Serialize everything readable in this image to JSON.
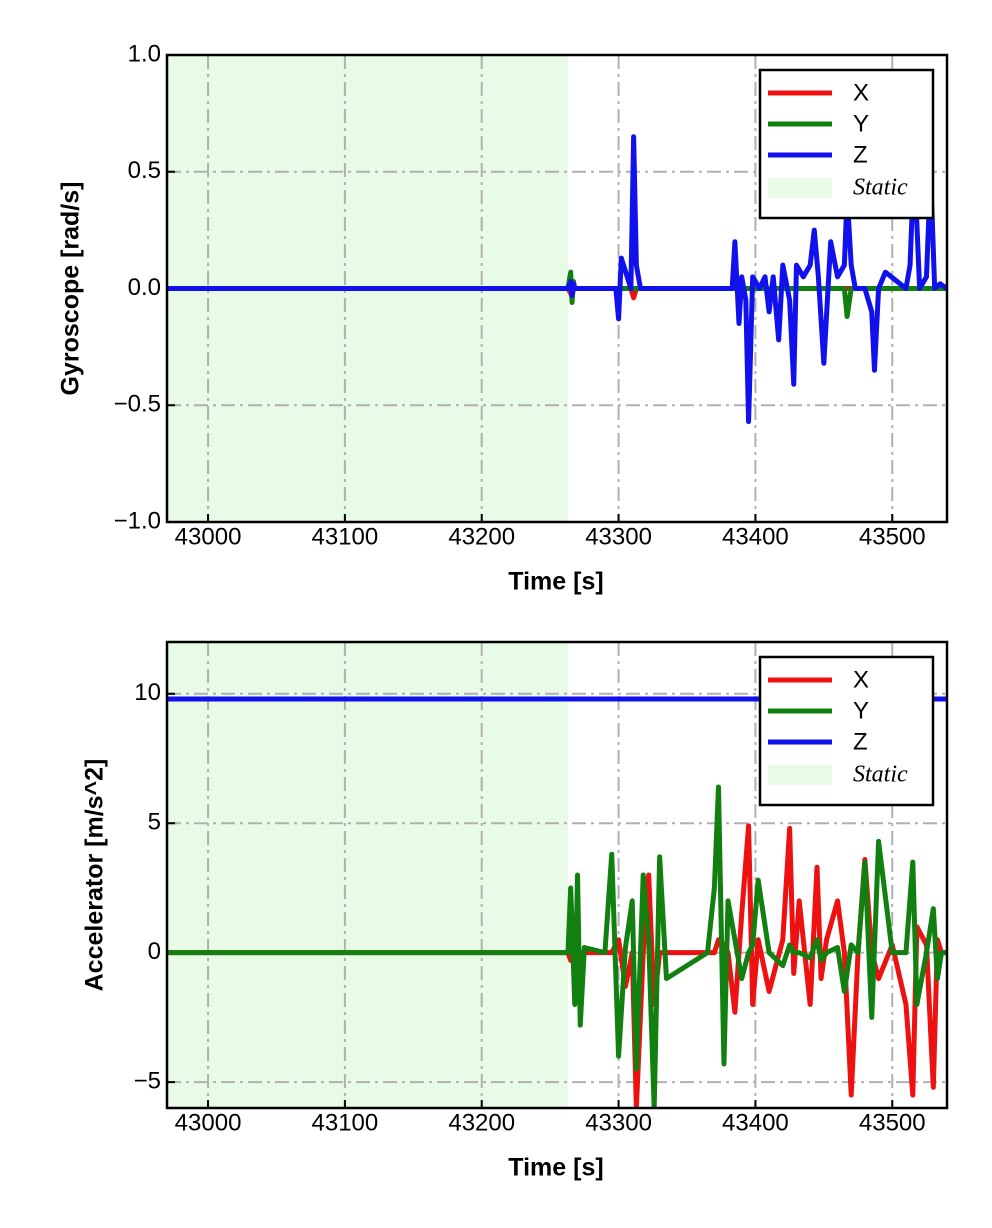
{
  "chart_data": [
    {
      "type": "line",
      "xlabel": "Time [s]",
      "ylabel": "Gyroscope [rad/s]",
      "x": [
        42970,
        43263,
        43265,
        43266,
        43267,
        43268,
        43270,
        43298,
        43300,
        43302,
        43309,
        43311,
        43313,
        43316,
        43383,
        43385,
        43388,
        43390,
        43393,
        43395,
        43398,
        43403,
        43407,
        43410,
        43413,
        43417,
        43420,
        43425,
        43428,
        43430,
        43435,
        43440,
        43443,
        43446,
        43450,
        43455,
        43460,
        43465,
        43467,
        43470,
        43473,
        43480,
        43485,
        43487,
        43490,
        43495,
        43510,
        43513,
        43516,
        43520,
        43525,
        43528,
        43531,
        43535,
        43540
      ],
      "series": [
        {
          "name": "X",
          "color": "#ee1111",
          "values": [
            0,
            0,
            -0.02,
            -0.04,
            0,
            0,
            0,
            0,
            0,
            0,
            0,
            -0.04,
            0,
            0,
            0,
            0,
            0,
            0,
            0,
            0,
            0,
            0,
            0,
            0,
            0,
            0,
            0,
            0,
            0,
            0,
            0,
            0,
            0,
            0,
            0,
            0,
            0,
            0,
            0,
            0,
            0,
            0,
            0,
            0,
            0,
            0,
            0,
            0,
            0,
            0,
            0,
            0,
            0,
            0,
            0
          ]
        },
        {
          "name": "Y",
          "color": "#118011",
          "values": [
            0,
            0,
            0.07,
            -0.06,
            0.03,
            0,
            0,
            0,
            0,
            0,
            0,
            0,
            0,
            0,
            0,
            0,
            0,
            0,
            0,
            0,
            0,
            0,
            0,
            0,
            0,
            0,
            0,
            0,
            0,
            0,
            0,
            0,
            0,
            0,
            0,
            0,
            0,
            0,
            -0.12,
            0,
            0,
            0,
            0,
            0,
            0,
            0,
            0,
            0,
            0,
            0,
            0,
            0,
            0,
            0,
            0
          ]
        },
        {
          "name": "Z",
          "color": "#1111ee",
          "values": [
            0,
            0,
            0.03,
            -0.03,
            0.02,
            0,
            0,
            0,
            -0.13,
            0.13,
            0,
            0.65,
            0.1,
            0,
            0,
            0.2,
            -0.15,
            0.05,
            -0.05,
            -0.57,
            0.05,
            0,
            0.05,
            -0.1,
            0.05,
            -0.22,
            0.1,
            -0.05,
            -0.41,
            0.1,
            0.05,
            0.1,
            0.25,
            0.05,
            -0.32,
            0.2,
            0.05,
            0.1,
            0.4,
            0.1,
            0,
            0,
            -0.1,
            -0.35,
            0,
            0.07,
            0,
            0.1,
            0.55,
            0,
            0.05,
            0.5,
            0,
            0.02,
            0
          ]
        }
      ],
      "spans": [
        {
          "name": "Static",
          "color": "#e8fbe6",
          "x": [
            42970,
            43263
          ]
        }
      ],
      "xlim": [
        42970,
        43540
      ],
      "xticks": [
        43000,
        43100,
        43200,
        43300,
        43400,
        43500
      ],
      "ylim": [
        -1,
        1
      ],
      "yticks": [
        {
          "value": -1,
          "label": "−1.0"
        },
        {
          "value": -0.5,
          "label": "−0.5"
        },
        {
          "value": 0,
          "label": "0.0"
        },
        0.5,
        {
          "value": 1,
          "label": "1.0"
        }
      ],
      "grid": true,
      "legend": "upper right"
    },
    {
      "type": "line",
      "xlabel": "Time [s]",
      "ylabel": "Accelerator [m/s^2]",
      "x": [
        42970,
        43263,
        43265,
        43268,
        43270,
        43272,
        43275,
        43290,
        43295,
        43300,
        43305,
        43310,
        43313,
        43318,
        43322,
        43326,
        43330,
        43335,
        43365,
        43370,
        43373,
        43377,
        43380,
        43385,
        43390,
        43395,
        43398,
        43402,
        43410,
        43420,
        43425,
        43428,
        43432,
        43440,
        43445,
        43448,
        43452,
        43460,
        43465,
        43470,
        43475,
        43480,
        43485,
        43490,
        43500,
        43510,
        43515,
        43518,
        43525,
        43530,
        43533,
        43536,
        43540
      ],
      "series": [
        {
          "name": "X",
          "color": "#ee1111",
          "values": [
            0,
            0,
            -0.3,
            0.2,
            0,
            0,
            0,
            0,
            0,
            0.5,
            -1.3,
            0,
            -6.0,
            0,
            3.0,
            -2.0,
            0,
            0,
            0,
            0,
            0.5,
            0.3,
            0,
            -2.3,
            1.5,
            4.9,
            -2.0,
            0.5,
            -1.5,
            0.5,
            4.8,
            -0.8,
            2.0,
            -2.0,
            3.3,
            -1.0,
            0.5,
            2.0,
            0,
            -5.5,
            0,
            3.6,
            0,
            -1.0,
            0.3,
            -2.0,
            -5.5,
            1.0,
            0.3,
            -5.2,
            0.5,
            0,
            0
          ]
        },
        {
          "name": "Y",
          "color": "#118011",
          "values": [
            0,
            0,
            2.5,
            -2.0,
            3.0,
            -2.8,
            0.2,
            0,
            3.8,
            -4.0,
            0.2,
            2.0,
            -4.5,
            3.0,
            0.5,
            -6.0,
            3.7,
            -1.0,
            0,
            2.5,
            6.4,
            -4.3,
            2.0,
            0.5,
            -1.0,
            0,
            0.3,
            2.8,
            0,
            -0.5,
            0.3,
            0,
            0,
            -0.2,
            0.5,
            -0.3,
            0,
            0.2,
            -1.5,
            0.3,
            0,
            3.5,
            -2.5,
            4.3,
            0,
            0,
            3.5,
            -2.0,
            0,
            1.7,
            -1.0,
            0,
            0
          ]
        },
        {
          "name": "Z",
          "color": "#1111ee",
          "values": [
            9.8,
            9.8,
            9.8,
            9.8,
            9.8,
            9.8,
            9.8,
            9.8,
            9.8,
            9.8,
            9.8,
            9.8,
            9.8,
            9.8,
            9.8,
            9.8,
            9.8,
            9.8,
            9.8,
            9.8,
            9.8,
            9.8,
            9.8,
            9.8,
            9.8,
            9.8,
            9.8,
            9.8,
            9.8,
            9.8,
            9.8,
            9.8,
            9.8,
            9.8,
            9.8,
            9.8,
            9.8,
            9.8,
            9.8,
            9.8,
            9.8,
            9.8,
            9.8,
            9.8,
            9.8,
            9.8,
            9.8,
            9.8,
            9.8,
            9.8,
            9.8,
            9.8,
            9.8
          ]
        }
      ],
      "spans": [
        {
          "name": "Static",
          "color": "#e8fbe6",
          "x": [
            42970,
            43263
          ]
        }
      ],
      "xlim": [
        42970,
        43540
      ],
      "xticks": [
        43000,
        43100,
        43200,
        43300,
        43400,
        43500
      ],
      "ylim": [
        -6,
        12
      ],
      "yticks": [
        {
          "value": -5,
          "label": "−5"
        },
        0,
        5,
        10
      ],
      "grid": true,
      "legend": "upper right"
    }
  ]
}
